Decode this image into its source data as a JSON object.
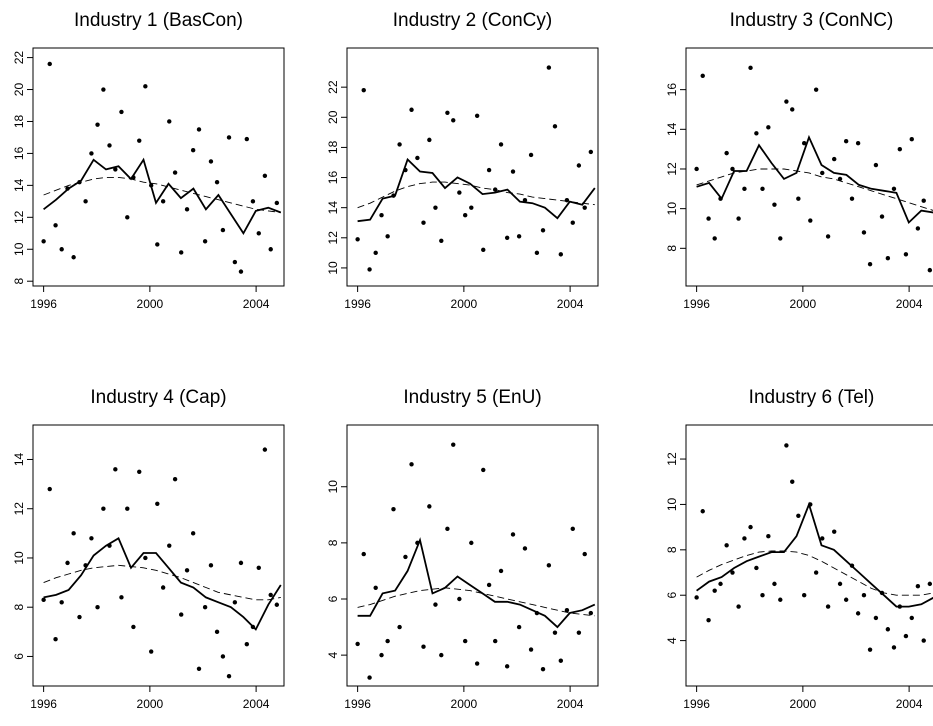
{
  "chart_data": [
    {
      "type": "scatter",
      "title": "Industry 1 (BasCon)",
      "xlim": [
        1995.6,
        2005.05
      ],
      "xticks": [
        1996,
        2000,
        2004
      ],
      "ylim": [
        7.7,
        22.6
      ],
      "yticks": [
        8,
        10,
        12,
        14,
        16,
        18,
        20,
        22
      ],
      "points": {
        "x": [
          1996.0,
          1996.23,
          1996.45,
          1996.68,
          1996.9,
          1997.13,
          1997.35,
          1997.58,
          1997.8,
          1998.03,
          1998.25,
          1998.48,
          1998.7,
          1998.93,
          1999.15,
          1999.38,
          1999.6,
          1999.83,
          2000.05,
          2000.28,
          2000.5,
          2000.73,
          2000.95,
          2001.18,
          2001.4,
          2001.63,
          2001.85,
          2002.08,
          2002.3,
          2002.53,
          2002.75,
          2002.98,
          2003.2,
          2003.43,
          2003.65,
          2003.88,
          2004.1,
          2004.33,
          2004.55,
          2004.78
        ],
        "y": [
          10.5,
          21.6,
          11.5,
          10.0,
          13.8,
          9.5,
          14.2,
          13.0,
          16.0,
          17.8,
          20.0,
          16.5,
          15.0,
          18.6,
          12.0,
          14.5,
          16.8,
          20.2,
          14.0,
          10.3,
          13.0,
          18.0,
          14.8,
          9.8,
          12.5,
          16.2,
          17.5,
          10.5,
          15.5,
          14.2,
          11.2,
          17.0,
          9.2,
          8.6,
          16.9,
          13.0,
          11.0,
          14.6,
          10.0,
          12.9
        ]
      },
      "lines": {
        "x": [
          1996,
          1996.47,
          1996.94,
          1997.41,
          1997.88,
          1998.35,
          1998.82,
          1999.29,
          1999.76,
          2000.23,
          2000.7,
          2001.17,
          2001.64,
          2002.11,
          2002.58,
          2003.05,
          2003.52,
          2003.99,
          2004.46,
          2004.93
        ],
        "solid": [
          12.5,
          13.1,
          13.8,
          14.3,
          15.6,
          15.0,
          15.2,
          14.4,
          15.6,
          12.9,
          14.1,
          13.2,
          13.8,
          12.5,
          13.4,
          12.2,
          11.0,
          12.4,
          12.6,
          12.3
        ],
        "dashed": [
          13.4,
          13.7,
          14.0,
          14.2,
          14.4,
          14.5,
          14.5,
          14.4,
          14.2,
          14.1,
          13.9,
          13.7,
          13.5,
          13.3,
          13.1,
          12.9,
          12.7,
          12.5,
          12.4,
          12.3
        ]
      }
    },
    {
      "type": "scatter",
      "title": "Industry 2 (ConCy)",
      "xlim": [
        1995.6,
        2005.05
      ],
      "xticks": [
        1996,
        2000,
        2004
      ],
      "ylim": [
        8.8,
        24.6
      ],
      "yticks": [
        10,
        12,
        14,
        16,
        18,
        20,
        22
      ],
      "points": {
        "x": [
          1996.0,
          1996.23,
          1996.45,
          1996.68,
          1996.9,
          1997.13,
          1997.35,
          1997.58,
          1997.8,
          1998.03,
          1998.25,
          1998.48,
          1998.7,
          1998.93,
          1999.15,
          1999.38,
          1999.6,
          1999.83,
          2000.05,
          2000.28,
          2000.5,
          2000.73,
          2000.95,
          2001.18,
          2001.4,
          2001.63,
          2001.85,
          2002.08,
          2002.3,
          2002.53,
          2002.75,
          2002.98,
          2003.2,
          2003.43,
          2003.65,
          2003.88,
          2004.1,
          2004.33,
          2004.55,
          2004.78
        ],
        "y": [
          11.9,
          21.8,
          9.9,
          11.0,
          13.5,
          12.1,
          14.8,
          18.2,
          16.5,
          20.5,
          17.3,
          13.0,
          18.5,
          14.0,
          11.8,
          20.3,
          19.8,
          15.0,
          13.5,
          14.0,
          20.1,
          11.2,
          16.5,
          15.2,
          18.2,
          12.0,
          16.4,
          12.1,
          14.5,
          17.5,
          11.0,
          12.5,
          23.3,
          19.4,
          10.9,
          14.5,
          13.0,
          16.8,
          14.0,
          17.7
        ]
      },
      "lines": {
        "x": [
          1996,
          1996.47,
          1996.94,
          1997.41,
          1997.88,
          1998.35,
          1998.82,
          1999.29,
          1999.76,
          2000.23,
          2000.7,
          2001.17,
          2001.64,
          2002.11,
          2002.58,
          2003.05,
          2003.52,
          2003.99,
          2004.46,
          2004.93
        ],
        "solid": [
          13.1,
          13.2,
          14.6,
          14.8,
          17.2,
          16.4,
          16.3,
          15.3,
          16.0,
          15.6,
          14.9,
          15.0,
          15.2,
          14.4,
          14.3,
          14.0,
          13.3,
          14.4,
          14.2,
          15.3
        ],
        "dashed": [
          14.0,
          14.3,
          14.7,
          15.1,
          15.4,
          15.6,
          15.7,
          15.7,
          15.6,
          15.5,
          15.3,
          15.2,
          15.0,
          14.9,
          14.7,
          14.6,
          14.5,
          14.4,
          14.3,
          14.2
        ]
      }
    },
    {
      "type": "scatter",
      "title": "Industry 3 (ConNC)",
      "xlim": [
        1995.6,
        2005.05
      ],
      "xticks": [
        1996,
        2000,
        2004
      ],
      "ylim": [
        6.1,
        18.1
      ],
      "yticks": [
        8,
        10,
        12,
        14,
        16
      ],
      "points": {
        "x": [
          1996.0,
          1996.23,
          1996.45,
          1996.68,
          1996.9,
          1997.13,
          1997.35,
          1997.58,
          1997.8,
          1998.03,
          1998.25,
          1998.48,
          1998.7,
          1998.93,
          1999.15,
          1999.38,
          1999.6,
          1999.83,
          2000.05,
          2000.28,
          2000.5,
          2000.73,
          2000.95,
          2001.18,
          2001.4,
          2001.63,
          2001.85,
          2002.08,
          2002.3,
          2002.53,
          2002.75,
          2002.98,
          2003.2,
          2003.43,
          2003.65,
          2003.88,
          2004.1,
          2004.33,
          2004.55,
          2004.78
        ],
        "y": [
          12.0,
          16.7,
          9.5,
          8.5,
          10.5,
          12.8,
          12.0,
          9.5,
          11.0,
          17.1,
          13.8,
          11.0,
          14.1,
          10.2,
          8.5,
          15.4,
          15.0,
          10.5,
          13.3,
          9.4,
          16.0,
          11.8,
          8.6,
          12.5,
          11.5,
          13.4,
          10.5,
          13.3,
          8.8,
          7.2,
          12.2,
          9.6,
          7.5,
          11.0,
          13.0,
          7.7,
          13.5,
          9.0,
          10.4,
          6.9
        ]
      },
      "lines": {
        "x": [
          1996,
          1996.47,
          1996.94,
          1997.41,
          1997.88,
          1998.35,
          1998.82,
          1999.29,
          1999.76,
          2000.23,
          2000.7,
          2001.17,
          2001.64,
          2002.11,
          2002.58,
          2003.05,
          2003.52,
          2003.99,
          2004.46,
          2004.93
        ],
        "solid": [
          11.1,
          11.3,
          10.5,
          11.9,
          11.9,
          13.2,
          12.3,
          11.5,
          11.8,
          13.6,
          12.2,
          11.8,
          11.7,
          11.2,
          11.0,
          10.9,
          10.8,
          9.3,
          9.9,
          9.8
        ],
        "dashed": [
          11.2,
          11.4,
          11.6,
          11.8,
          11.9,
          12.0,
          12.0,
          12.0,
          11.9,
          11.8,
          11.6,
          11.5,
          11.3,
          11.1,
          10.9,
          10.7,
          10.5,
          10.3,
          10.1,
          9.9
        ]
      }
    },
    {
      "type": "scatter",
      "title": "Industry 4 (Cap)",
      "xlim": [
        1995.6,
        2005.05
      ],
      "xticks": [
        1996,
        2000,
        2004
      ],
      "ylim": [
        4.8,
        15.4
      ],
      "yticks": [
        6,
        8,
        10,
        12,
        14
      ],
      "points": {
        "x": [
          1996.0,
          1996.23,
          1996.45,
          1996.68,
          1996.9,
          1997.13,
          1997.35,
          1997.58,
          1997.8,
          1998.03,
          1998.25,
          1998.48,
          1998.7,
          1998.93,
          1999.15,
          1999.38,
          1999.6,
          1999.83,
          2000.05,
          2000.28,
          2000.5,
          2000.73,
          2000.95,
          2001.18,
          2001.4,
          2001.63,
          2001.85,
          2002.08,
          2002.3,
          2002.53,
          2002.75,
          2002.98,
          2003.2,
          2003.43,
          2003.65,
          2003.88,
          2004.1,
          2004.33,
          2004.55,
          2004.78
        ],
        "y": [
          8.3,
          12.8,
          6.7,
          8.2,
          9.8,
          11.0,
          7.6,
          9.7,
          10.8,
          8.0,
          12.0,
          10.5,
          13.6,
          8.4,
          12.0,
          7.2,
          13.5,
          10.0,
          6.2,
          12.2,
          8.8,
          10.5,
          13.2,
          7.7,
          9.5,
          11.0,
          5.5,
          8.0,
          9.7,
          7.0,
          6.0,
          5.2,
          8.2,
          9.8,
          6.5,
          7.2,
          9.6,
          14.4,
          8.5,
          8.1
        ]
      },
      "lines": {
        "x": [
          1996,
          1996.47,
          1996.94,
          1997.41,
          1997.88,
          1998.35,
          1998.82,
          1999.29,
          1999.76,
          2000.23,
          2000.7,
          2001.17,
          2001.64,
          2002.11,
          2002.58,
          2003.05,
          2003.52,
          2003.99,
          2004.46,
          2004.93
        ],
        "solid": [
          8.4,
          8.5,
          8.7,
          9.3,
          10.1,
          10.5,
          10.8,
          9.6,
          10.2,
          10.2,
          9.6,
          9.0,
          8.8,
          8.4,
          8.2,
          8.0,
          7.6,
          7.1,
          8.1,
          8.9
        ],
        "dashed": [
          9.0,
          9.2,
          9.35,
          9.5,
          9.6,
          9.65,
          9.7,
          9.65,
          9.6,
          9.5,
          9.35,
          9.2,
          9.0,
          8.8,
          8.6,
          8.5,
          8.4,
          8.3,
          8.3,
          8.4
        ]
      }
    },
    {
      "type": "scatter",
      "title": "Industry 5 (EnU)",
      "xlim": [
        1995.6,
        2005.05
      ],
      "xticks": [
        1996,
        2000,
        2004
      ],
      "ylim": [
        2.9,
        12.2
      ],
      "yticks": [
        4,
        6,
        8,
        10
      ],
      "points": {
        "x": [
          1996.0,
          1996.23,
          1996.45,
          1996.68,
          1996.9,
          1997.13,
          1997.35,
          1997.58,
          1997.8,
          1998.03,
          1998.25,
          1998.48,
          1998.7,
          1998.93,
          1999.15,
          1999.38,
          1999.6,
          1999.83,
          2000.05,
          2000.28,
          2000.5,
          2000.73,
          2000.95,
          2001.18,
          2001.4,
          2001.63,
          2001.85,
          2002.08,
          2002.3,
          2002.53,
          2002.75,
          2002.98,
          2003.2,
          2003.43,
          2003.65,
          2003.88,
          2004.1,
          2004.33,
          2004.55,
          2004.78
        ],
        "y": [
          4.4,
          7.6,
          3.2,
          6.4,
          4.0,
          4.5,
          9.2,
          5.0,
          7.5,
          10.8,
          8.0,
          4.3,
          9.3,
          5.8,
          4.0,
          8.5,
          11.5,
          6.0,
          4.5,
          8.0,
          3.7,
          10.6,
          6.5,
          4.5,
          7.0,
          3.6,
          8.3,
          5.0,
          7.8,
          4.2,
          5.5,
          3.5,
          7.2,
          4.8,
          3.8,
          5.6,
          8.5,
          4.8,
          7.6,
          5.5
        ]
      },
      "lines": {
        "x": [
          1996,
          1996.47,
          1996.94,
          1997.41,
          1997.88,
          1998.35,
          1998.82,
          1999.29,
          1999.76,
          2000.23,
          2000.7,
          2001.17,
          2001.64,
          2002.11,
          2002.58,
          2003.05,
          2003.52,
          2003.99,
          2004.46,
          2004.93
        ],
        "solid": [
          5.4,
          5.4,
          6.2,
          6.3,
          7.0,
          8.1,
          6.2,
          6.4,
          6.8,
          6.5,
          6.2,
          5.9,
          5.9,
          5.8,
          5.6,
          5.4,
          5.0,
          5.5,
          5.6,
          5.8
        ],
        "dashed": [
          5.7,
          5.8,
          5.95,
          6.1,
          6.2,
          6.3,
          6.35,
          6.4,
          6.35,
          6.3,
          6.2,
          6.1,
          6.0,
          5.9,
          5.8,
          5.7,
          5.6,
          5.5,
          5.45,
          5.4
        ]
      }
    },
    {
      "type": "scatter",
      "title": "Industry 6 (Tel)",
      "xlim": [
        1995.6,
        2005.05
      ],
      "xticks": [
        1996,
        2000,
        2004
      ],
      "ylim": [
        2.0,
        13.5
      ],
      "yticks": [
        4,
        6,
        8,
        10,
        12
      ],
      "points": {
        "x": [
          1996.0,
          1996.23,
          1996.45,
          1996.68,
          1996.9,
          1997.13,
          1997.35,
          1997.58,
          1997.8,
          1998.03,
          1998.25,
          1998.48,
          1998.7,
          1998.93,
          1999.15,
          1999.38,
          1999.6,
          1999.83,
          2000.05,
          2000.28,
          2000.5,
          2000.73,
          2000.95,
          2001.18,
          2001.4,
          2001.63,
          2001.85,
          2002.08,
          2002.3,
          2002.53,
          2002.75,
          2002.98,
          2003.2,
          2003.43,
          2003.65,
          2003.88,
          2004.1,
          2004.33,
          2004.55,
          2004.78
        ],
        "y": [
          5.9,
          9.7,
          4.9,
          6.2,
          6.5,
          8.2,
          7.0,
          5.5,
          8.5,
          9.0,
          7.2,
          6.0,
          8.6,
          6.5,
          5.8,
          12.6,
          11.0,
          9.5,
          6.0,
          10.0,
          7.0,
          8.5,
          5.5,
          8.8,
          6.5,
          5.8,
          7.3,
          5.2,
          6.0,
          3.6,
          5.0,
          6.1,
          4.5,
          3.7,
          5.5,
          4.2,
          5.0,
          6.4,
          4.0,
          6.5
        ]
      },
      "lines": {
        "x": [
          1996,
          1996.47,
          1996.94,
          1997.41,
          1997.88,
          1998.35,
          1998.82,
          1999.29,
          1999.76,
          2000.23,
          2000.7,
          2001.17,
          2001.64,
          2002.11,
          2002.58,
          2003.05,
          2003.52,
          2003.99,
          2004.46,
          2004.93
        ],
        "solid": [
          6.2,
          6.6,
          6.8,
          7.2,
          7.5,
          7.7,
          7.9,
          7.9,
          8.6,
          10.0,
          8.2,
          8.0,
          7.5,
          7.0,
          6.5,
          6.0,
          5.5,
          5.5,
          5.6,
          5.9
        ],
        "dashed": [
          6.8,
          7.1,
          7.35,
          7.55,
          7.75,
          7.9,
          7.95,
          7.95,
          7.9,
          7.75,
          7.5,
          7.2,
          6.9,
          6.6,
          6.3,
          6.1,
          6.0,
          6.0,
          6.0,
          6.1
        ]
      }
    }
  ]
}
